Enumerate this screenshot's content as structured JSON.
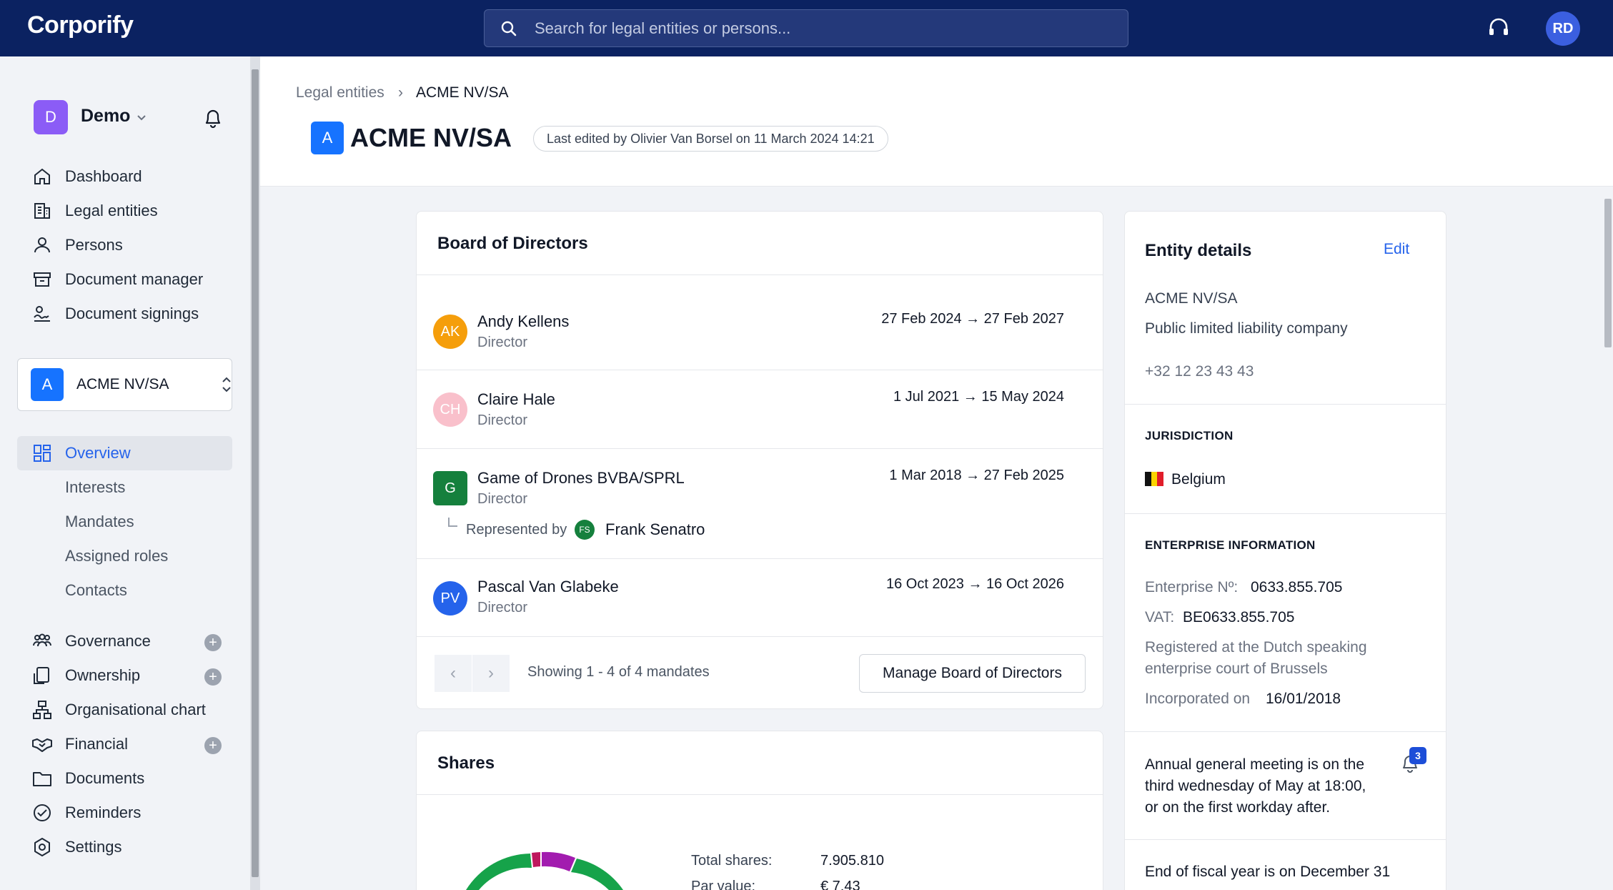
{
  "topbar": {
    "logo": "Corporify",
    "search_placeholder": "Search for legal entities or persons...",
    "user_initials": "RD"
  },
  "sidebar": {
    "workspace": {
      "initial": "D",
      "name": "Demo"
    },
    "main_nav": [
      {
        "label": "Dashboard",
        "icon": "home-icon"
      },
      {
        "label": "Legal entities",
        "icon": "building-icon"
      },
      {
        "label": "Persons",
        "icon": "person-icon"
      },
      {
        "label": "Document manager",
        "icon": "archive-icon"
      },
      {
        "label": "Document signings",
        "icon": "signature-icon"
      }
    ],
    "entity_selector": {
      "initial": "A",
      "name": "ACME NV/SA"
    },
    "overview": {
      "label": "Overview",
      "icon": "grid-icon"
    },
    "sub_nav": [
      {
        "label": "Interests"
      },
      {
        "label": "Mandates"
      },
      {
        "label": "Assigned roles"
      },
      {
        "label": "Contacts"
      }
    ],
    "section_nav": [
      {
        "label": "Governance",
        "icon": "people-icon",
        "has_add": true
      },
      {
        "label": "Ownership",
        "icon": "ownership-icon",
        "has_add": true
      },
      {
        "label": "Organisational chart",
        "icon": "org-chart-icon",
        "has_add": false
      },
      {
        "label": "Financial",
        "icon": "handshake-icon",
        "has_add": true
      },
      {
        "label": "Documents",
        "icon": "folder-icon",
        "has_add": false
      },
      {
        "label": "Reminders",
        "icon": "check-circle-icon",
        "has_add": false
      },
      {
        "label": "Settings",
        "icon": "settings-icon",
        "has_add": false
      }
    ],
    "add_symbol": "+"
  },
  "header": {
    "breadcrumb": {
      "parent": "Legal entities",
      "separator": "›",
      "current": "ACME NV/SA"
    },
    "title_initial": "A",
    "title": "ACME NV/SA",
    "last_edited": "Last edited by Olivier Van Borsel on 11 March 2024 14:21"
  },
  "board": {
    "title": "Board of Directors",
    "members": [
      {
        "initials": "AK",
        "name": "Andy Kellens",
        "role": "Director",
        "dates": "27 Feb 2024 → 27 Feb 2027",
        "color": "#f59e0b",
        "shape": "circle"
      },
      {
        "initials": "CH",
        "name": "Claire Hale",
        "role": "Director",
        "dates": "1 Jul 2021 → 15 May 2024",
        "color": "#f9c0cb",
        "shape": "circle"
      },
      {
        "initials": "G",
        "name": "Game of Drones BVBA/SPRL",
        "role": "Director",
        "dates": "1 Mar 2018 → 27 Feb 2025",
        "color": "#15803d",
        "shape": "square",
        "represented": {
          "label": "Represented by",
          "initials": "FS",
          "name": "Frank Senatro"
        }
      },
      {
        "initials": "PV",
        "name": "Pascal Van Glabeke",
        "role": "Director",
        "dates": "16 Oct 2023 → 16 Oct 2026",
        "color": "#2563eb",
        "shape": "circle"
      }
    ],
    "pagination": {
      "prev": "‹",
      "next": "›",
      "showing": "Showing 1 - 4 of 4 mandates"
    },
    "manage_button": "Manage Board of Directors"
  },
  "shares": {
    "title": "Shares",
    "total_label": "Total shares:",
    "total_value": "7.905.810",
    "par_label": "Par value:",
    "par_value": "€ 7,43"
  },
  "entity_details": {
    "title": "Entity details",
    "edit": "Edit",
    "name": "ACME NV/SA",
    "type": "Public limited liability company",
    "phone": "+32 12 23 43 43",
    "jurisdiction_heading": "JURISDICTION",
    "country": "Belgium",
    "enterprise_heading": "ENTERPRISE INFORMATION",
    "enterprise_no_label": "Enterprise Nº:",
    "enterprise_no": "0633.855.705",
    "vat_label": "VAT:",
    "vat": "BE0633.855.705",
    "registered_line1": "Registered at the Dutch speaking",
    "registered_line2": "enterprise court of Brussels",
    "incorporated_label": "Incorporated on",
    "incorporated": "16/01/2018",
    "agm_line1": "Annual general meeting is on the",
    "agm_line2": "third wednesday of May at 18:00,",
    "agm_line3": "or on the first workday after.",
    "reminder_count": "3",
    "fiscal": "End of fiscal year is on December 31"
  },
  "colors": {
    "topbar": "#0b2261",
    "accent": "#2563eb",
    "entity_badge": "#1673ff",
    "workspace_badge": "#8b5cf6"
  }
}
